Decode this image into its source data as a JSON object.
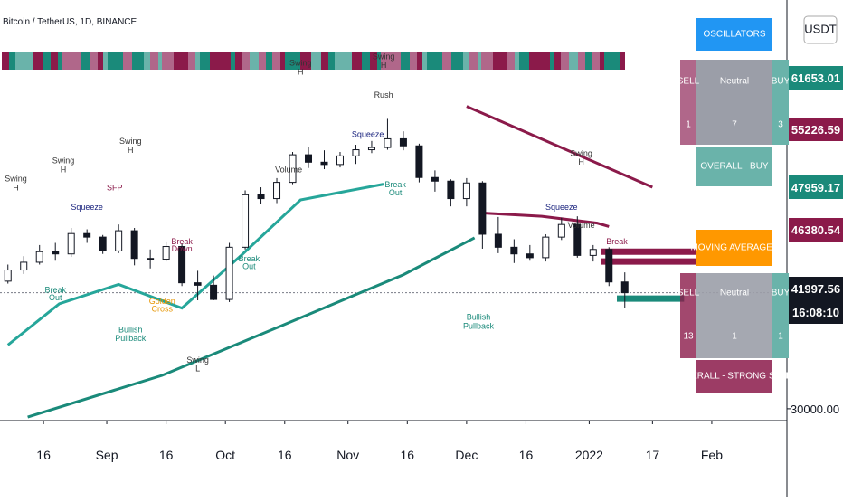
{
  "chart_data": {
    "type": "candlestick",
    "title": "Bitcoin / TetherUS, 1D, BINANCE",
    "currency": "USDT",
    "log_scale": true,
    "up_color": "#131722",
    "down_color": "#131722",
    "xlim": [
      "2021-08-05",
      "2022-02-20"
    ],
    "ylim": [
      29000,
      96500
    ],
    "xticks": [
      {
        "value": "2021-08-16",
        "label": "16"
      },
      {
        "value": "2021-09-01",
        "label": "Sep"
      },
      {
        "value": "2021-09-16",
        "label": "16"
      },
      {
        "value": "2021-10-01",
        "label": "Oct"
      },
      {
        "value": "2021-10-16",
        "label": "16"
      },
      {
        "value": "2021-11-01",
        "label": "Nov"
      },
      {
        "value": "2021-11-16",
        "label": "16"
      },
      {
        "value": "2021-12-01",
        "label": "Dec"
      },
      {
        "value": "2021-12-16",
        "label": "16"
      },
      {
        "value": "2022-01-01",
        "label": "2022"
      },
      {
        "value": "2022-01-17",
        "label": "17"
      },
      {
        "value": "2022-02-01",
        "label": "Feb"
      }
    ],
    "yticks": [
      {
        "value": 30000,
        "label": "30000.00"
      }
    ],
    "x": [
      "2021-08-07",
      "2021-08-11",
      "2021-08-15",
      "2021-08-19",
      "2021-08-23",
      "2021-08-27",
      "2021-08-31",
      "2021-09-04",
      "2021-09-08",
      "2021-09-12",
      "2021-09-16",
      "2021-09-20",
      "2021-09-24",
      "2021-09-28",
      "2021-10-02",
      "2021-10-06",
      "2021-10-10",
      "2021-10-14",
      "2021-10-18",
      "2021-10-22",
      "2021-10-26",
      "2021-10-30",
      "2021-11-03",
      "2021-11-07",
      "2021-11-11",
      "2021-11-15",
      "2021-11-19",
      "2021-11-23",
      "2021-11-27",
      "2021-12-01",
      "2021-12-05",
      "2021-12-09",
      "2021-12-13",
      "2021-12-17",
      "2021-12-21",
      "2021-12-25",
      "2021-12-29",
      "2022-01-02",
      "2022-01-06",
      "2022-01-10"
    ],
    "open": [
      43200,
      44600,
      45600,
      47000,
      46700,
      49500,
      49000,
      47100,
      49900,
      46100,
      46000,
      47700,
      43000,
      42700,
      41000,
      47600,
      55300,
      54700,
      57300,
      62000,
      60700,
      60300,
      61800,
      62900,
      63300,
      64900,
      63600,
      58100,
      57500,
      54700,
      57200,
      49400,
      47600,
      46700,
      46200,
      49000,
      50800,
      46500,
      47300,
      43100
    ],
    "high": [
      45300,
      46400,
      47900,
      48200,
      50300,
      50100,
      49300,
      50800,
      50300,
      47300,
      48400,
      48100,
      44500,
      43900,
      48200,
      56000,
      56500,
      58000,
      62500,
      63400,
      62800,
      62500,
      63800,
      64500,
      68700,
      66300,
      64000,
      59300,
      57800,
      58000,
      57500,
      51900,
      48700,
      47900,
      49400,
      51800,
      52000,
      47900,
      47600,
      44300
    ],
    "low": [
      42900,
      44100,
      45300,
      45800,
      46300,
      48200,
      46700,
      46800,
      45200,
      44800,
      45700,
      42600,
      40900,
      40900,
      40700,
      47300,
      53800,
      54000,
      57000,
      59700,
      59500,
      59800,
      60400,
      62300,
      62900,
      62800,
      57300,
      55800,
      53500,
      53500,
      47400,
      46800,
      45500,
      45800,
      45700,
      48600,
      46200,
      45700,
      42600,
      40000
    ],
    "close": [
      44600,
      45600,
      47000,
      46700,
      49500,
      49000,
      47100,
      49900,
      46100,
      46000,
      47700,
      43000,
      42700,
      41000,
      47600,
      55300,
      54700,
      57300,
      62000,
      60700,
      60300,
      61800,
      62900,
      63300,
      64900,
      63600,
      58100,
      57500,
      54700,
      57200,
      49400,
      47600,
      46700,
      46200,
      49000,
      50800,
      46500,
      47300,
      43100,
      41800
    ],
    "lines": [
      {
        "color": "#1a8a7a",
        "x": [
          "2021-08-12",
          "2021-09-15",
          "2021-10-15",
          "2021-11-15",
          "2021-12-03"
        ],
        "values": [
          29300,
          33000,
          38000,
          44000,
          48900
        ]
      },
      {
        "color": "#8b1a4a",
        "x": [
          "2021-12-01",
          "2022-01-17"
        ],
        "values": [
          71200,
          56500
        ]
      },
      {
        "color": "#8b1a4a",
        "x": [
          "2021-12-05",
          "2021-12-20",
          "2022-01-03",
          "2022-01-06"
        ],
        "values": [
          52500,
          52000,
          51000,
          50500
        ]
      },
      {
        "color": "#26a69a",
        "x": [
          "2021-08-07",
          "2021-08-20",
          "2021-09-04",
          "2021-09-20",
          "2021-10-05",
          "2021-10-20",
          "2021-11-10"
        ],
        "values": [
          36000,
          40500,
          42800,
          40000,
          46500,
          54500,
          57000
        ]
      }
    ],
    "levels": [
      {
        "color": "#8b1a4a",
        "x": [
          "2022-01-04",
          "2022-01-31"
        ],
        "values": [
          47000,
          47000
        ]
      },
      {
        "color": "#8b1a4a",
        "x": [
          "2022-01-04",
          "2022-01-31"
        ],
        "values": [
          45700,
          45700
        ]
      },
      {
        "color": "#1a8a7a",
        "x": [
          "2022-01-08",
          "2022-01-25"
        ],
        "values": [
          41100,
          41100
        ]
      }
    ],
    "annotations": [
      {
        "text": "Swing",
        "x": "2021-08-09",
        "y": 57500,
        "color": "#333"
      },
      {
        "text": "H",
        "x": "2021-08-09",
        "y": 56000,
        "color": "#333"
      },
      {
        "text": "Swing",
        "x": "2021-08-21",
        "y": 60500,
        "color": "#333"
      },
      {
        "text": "H",
        "x": "2021-08-21",
        "y": 59000,
        "color": "#333"
      },
      {
        "text": "Swing",
        "x": "2021-09-07",
        "y": 64000,
        "color": "#333"
      },
      {
        "text": "H",
        "x": "2021-09-07",
        "y": 62300,
        "color": "#333"
      },
      {
        "text": "Squeeze",
        "x": "2021-08-27",
        "y": 53000,
        "color": "#1a237e"
      },
      {
        "text": "SFP",
        "x": "2021-09-03",
        "y": 56000,
        "color": "#8b1a4a"
      },
      {
        "text": "Break",
        "x": "2021-08-19",
        "y": 41800,
        "color": "#1a8a7a"
      },
      {
        "text": "Out",
        "x": "2021-08-19",
        "y": 40900,
        "color": "#1a8a7a"
      },
      {
        "text": "Bullish",
        "x": "2021-09-07",
        "y": 37300,
        "color": "#1a8a7a"
      },
      {
        "text": "Pullback",
        "x": "2021-09-07",
        "y": 36400,
        "color": "#1a8a7a"
      },
      {
        "text": "Golden",
        "x": "2021-09-15",
        "y": 40500,
        "color": "#e69500"
      },
      {
        "text": "Cross",
        "x": "2021-09-15",
        "y": 39600,
        "color": "#e69500"
      },
      {
        "text": "Break",
        "x": "2021-09-20",
        "y": 48000,
        "color": "#8b1a4a"
      },
      {
        "text": "Down",
        "x": "2021-09-20",
        "y": 47000,
        "color": "#8b1a4a"
      },
      {
        "text": "Swing",
        "x": "2021-09-24",
        "y": 34200,
        "color": "#333"
      },
      {
        "text": "L",
        "x": "2021-09-24",
        "y": 33400,
        "color": "#333"
      },
      {
        "text": "Break",
        "x": "2021-10-07",
        "y": 45700,
        "color": "#1a8a7a"
      },
      {
        "text": "Out",
        "x": "2021-10-07",
        "y": 44700,
        "color": "#1a8a7a"
      },
      {
        "text": "Volume",
        "x": "2021-10-17",
        "y": 59000,
        "color": "#333"
      },
      {
        "text": "Swing",
        "x": "2021-10-20",
        "y": 80000,
        "color": "#333"
      },
      {
        "text": "H",
        "x": "2021-10-20",
        "y": 78000,
        "color": "#333"
      },
      {
        "text": "Swing",
        "x": "2021-11-10",
        "y": 81500,
        "color": "#333"
      },
      {
        "text": "H",
        "x": "2021-11-10",
        "y": 79500,
        "color": "#333"
      },
      {
        "text": "Rush",
        "x": "2021-11-10",
        "y": 73000,
        "color": "#333"
      },
      {
        "text": "Squeeze",
        "x": "2021-11-06",
        "y": 65200,
        "color": "#1a237e"
      },
      {
        "text": "Break",
        "x": "2021-11-13",
        "y": 56500,
        "color": "#1a8a7a"
      },
      {
        "text": "Out",
        "x": "2021-11-13",
        "y": 55200,
        "color": "#1a8a7a"
      },
      {
        "text": "Bullish",
        "x": "2021-12-04",
        "y": 38700,
        "color": "#1a8a7a"
      },
      {
        "text": "Pullback",
        "x": "2021-12-04",
        "y": 37700,
        "color": "#1a8a7a"
      },
      {
        "text": "Swing",
        "x": "2021-12-30",
        "y": 61800,
        "color": "#333"
      },
      {
        "text": "H",
        "x": "2021-12-30",
        "y": 60300,
        "color": "#333"
      },
      {
        "text": "Squeeze",
        "x": "2021-12-25",
        "y": 53000,
        "color": "#1a237e"
      },
      {
        "text": "Volume",
        "x": "2021-12-30",
        "y": 50300,
        "color": "#333"
      },
      {
        "text": "Break",
        "x": "2022-01-08",
        "y": 48000,
        "color": "#8b1a4a"
      }
    ],
    "price_labels": [
      {
        "text": "61653.01",
        "color": "#1a8a7a"
      },
      {
        "text": "55226.59",
        "color": "#8b1a4a"
      },
      {
        "text": "47959.17",
        "color": "#1a8a7a"
      },
      {
        "text": "46380.54",
        "color": "#8b1a4a"
      },
      {
        "text": "41997.56",
        "color": "#131722"
      }
    ],
    "countdown": "16:08:10"
  },
  "oscillators": {
    "title": "OSCILLATORS",
    "sell": "SELL",
    "neutral": "Neutral",
    "buy": "BUY",
    "sell_count": "1",
    "neutral_count": "7",
    "buy_count": "3",
    "overall": "OVERALL - BUY"
  },
  "moving_averages": {
    "title": "MOVING AVERAGES",
    "sell": "SELL",
    "neutral": "Neutral",
    "buy": "BUY",
    "sell_count": "13",
    "neutral_count": "1",
    "buy_count": "1",
    "overall": "OVERALL - STRONG SELL"
  }
}
